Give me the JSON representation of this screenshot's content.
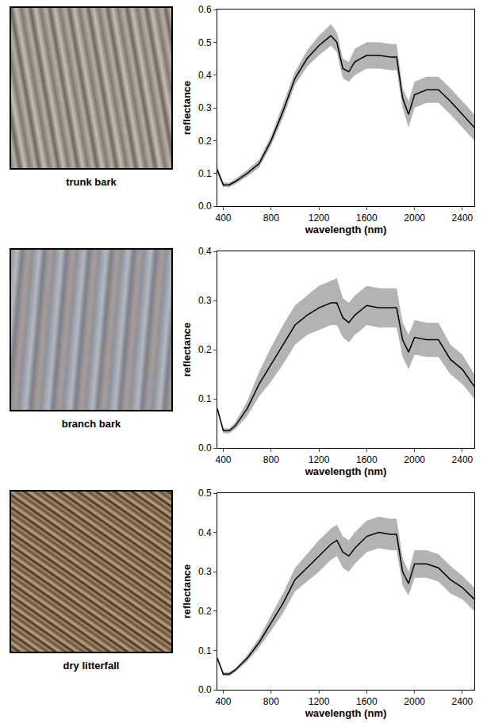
{
  "chart_data": [
    {
      "type": "line",
      "caption": "trunk bark",
      "x_label": "wavelength (nm)",
      "y_label": "reflectance",
      "x": [
        350,
        400,
        450,
        500,
        600,
        700,
        800,
        900,
        1000,
        1100,
        1200,
        1300,
        1350,
        1400,
        1450,
        1500,
        1600,
        1700,
        1800,
        1850,
        1900,
        1950,
        2000,
        2100,
        2200,
        2300,
        2400,
        2500
      ],
      "series": [
        {
          "type": "band",
          "color": "#b3b3b3",
          "lower": [
            0.1,
            0.058,
            0.058,
            0.067,
            0.09,
            0.118,
            0.185,
            0.27,
            0.37,
            0.425,
            0.46,
            0.49,
            0.47,
            0.39,
            0.38,
            0.4,
            0.42,
            0.42,
            0.415,
            0.415,
            0.3,
            0.24,
            0.3,
            0.315,
            0.315,
            0.28,
            0.24,
            0.2
          ],
          "upper": [
            0.12,
            0.072,
            0.072,
            0.083,
            0.11,
            0.142,
            0.215,
            0.31,
            0.41,
            0.475,
            0.52,
            0.555,
            0.53,
            0.45,
            0.44,
            0.48,
            0.5,
            0.5,
            0.495,
            0.495,
            0.36,
            0.32,
            0.38,
            0.395,
            0.395,
            0.36,
            0.32,
            0.28
          ]
        },
        {
          "type": "line",
          "color": "#000000",
          "values": [
            0.11,
            0.065,
            0.065,
            0.075,
            0.1,
            0.13,
            0.2,
            0.29,
            0.39,
            0.45,
            0.49,
            0.52,
            0.5,
            0.42,
            0.41,
            0.44,
            0.46,
            0.46,
            0.455,
            0.455,
            0.33,
            0.28,
            0.34,
            0.355,
            0.355,
            0.32,
            0.28,
            0.24
          ]
        }
      ],
      "xlim": [
        350,
        2500
      ],
      "xticks": [
        400,
        800,
        1200,
        1600,
        2000,
        2400
      ],
      "ylim": [
        0,
        0.6
      ],
      "yticks": [
        {
          "value": 0,
          "label": "0.0"
        },
        0.1,
        0.2,
        0.3,
        0.4,
        0.5,
        0.6
      ],
      "grid": false
    },
    {
      "type": "line",
      "caption": "branch bark",
      "x_label": "wavelength (nm)",
      "y_label": "reflectance",
      "x": [
        350,
        400,
        450,
        500,
        600,
        700,
        800,
        900,
        1000,
        1100,
        1200,
        1300,
        1350,
        1400,
        1450,
        1500,
        1600,
        1700,
        1800,
        1850,
        1900,
        1950,
        2000,
        2100,
        2200,
        2300,
        2400,
        2500
      ],
      "series": [
        {
          "type": "band",
          "color": "#b3b3b3",
          "lower": [
            0.075,
            0.03,
            0.03,
            0.038,
            0.065,
            0.105,
            0.135,
            0.17,
            0.21,
            0.23,
            0.24,
            0.25,
            0.25,
            0.225,
            0.215,
            0.23,
            0.25,
            0.245,
            0.245,
            0.245,
            0.185,
            0.16,
            0.19,
            0.185,
            0.185,
            0.15,
            0.13,
            0.1
          ],
          "upper": [
            0.085,
            0.04,
            0.04,
            0.052,
            0.095,
            0.155,
            0.205,
            0.25,
            0.29,
            0.31,
            0.33,
            0.34,
            0.345,
            0.305,
            0.295,
            0.31,
            0.33,
            0.325,
            0.325,
            0.325,
            0.255,
            0.23,
            0.26,
            0.255,
            0.255,
            0.21,
            0.19,
            0.15
          ]
        },
        {
          "type": "line",
          "color": "#000000",
          "values": [
            0.08,
            0.035,
            0.035,
            0.045,
            0.08,
            0.13,
            0.17,
            0.21,
            0.25,
            0.27,
            0.285,
            0.295,
            0.295,
            0.265,
            0.255,
            0.27,
            0.29,
            0.285,
            0.285,
            0.285,
            0.22,
            0.195,
            0.225,
            0.22,
            0.22,
            0.18,
            0.16,
            0.125
          ]
        }
      ],
      "xlim": [
        350,
        2500
      ],
      "xticks": [
        400,
        800,
        1200,
        1600,
        2000,
        2400
      ],
      "ylim": [
        0,
        0.4
      ],
      "yticks": [
        {
          "value": 0,
          "label": "0.0"
        },
        0.1,
        0.2,
        0.3,
        0.4
      ],
      "grid": false
    },
    {
      "type": "line",
      "caption": "dry litterfall",
      "x_label": "wavelength (nm)",
      "y_label": "reflectance",
      "x": [
        350,
        400,
        450,
        500,
        600,
        700,
        800,
        900,
        1000,
        1100,
        1200,
        1300,
        1350,
        1400,
        1450,
        1500,
        1600,
        1700,
        1800,
        1850,
        1900,
        1950,
        2000,
        2100,
        2200,
        2300,
        2400,
        2500
      ],
      "series": [
        {
          "type": "band",
          "color": "#b3b3b3",
          "lower": [
            0.075,
            0.035,
            0.035,
            0.045,
            0.072,
            0.108,
            0.15,
            0.195,
            0.25,
            0.275,
            0.3,
            0.33,
            0.34,
            0.31,
            0.3,
            0.32,
            0.35,
            0.36,
            0.355,
            0.355,
            0.265,
            0.24,
            0.285,
            0.285,
            0.275,
            0.245,
            0.23,
            0.2
          ],
          "upper": [
            0.085,
            0.045,
            0.045,
            0.055,
            0.088,
            0.132,
            0.19,
            0.245,
            0.31,
            0.345,
            0.38,
            0.41,
            0.42,
            0.39,
            0.38,
            0.4,
            0.43,
            0.44,
            0.435,
            0.435,
            0.335,
            0.3,
            0.355,
            0.355,
            0.345,
            0.315,
            0.29,
            0.26
          ]
        },
        {
          "type": "line",
          "color": "#000000",
          "values": [
            0.08,
            0.04,
            0.04,
            0.05,
            0.08,
            0.12,
            0.17,
            0.22,
            0.28,
            0.31,
            0.34,
            0.37,
            0.38,
            0.35,
            0.34,
            0.36,
            0.39,
            0.4,
            0.395,
            0.395,
            0.3,
            0.27,
            0.32,
            0.32,
            0.31,
            0.28,
            0.26,
            0.23
          ]
        }
      ],
      "xlim": [
        350,
        2500
      ],
      "xticks": [
        400,
        800,
        1200,
        1600,
        2000,
        2400
      ],
      "ylim": [
        0,
        0.5
      ],
      "yticks": [
        {
          "value": 0,
          "label": "0.0"
        },
        0.1,
        0.2,
        0.3,
        0.4,
        0.5
      ],
      "grid": false
    }
  ]
}
